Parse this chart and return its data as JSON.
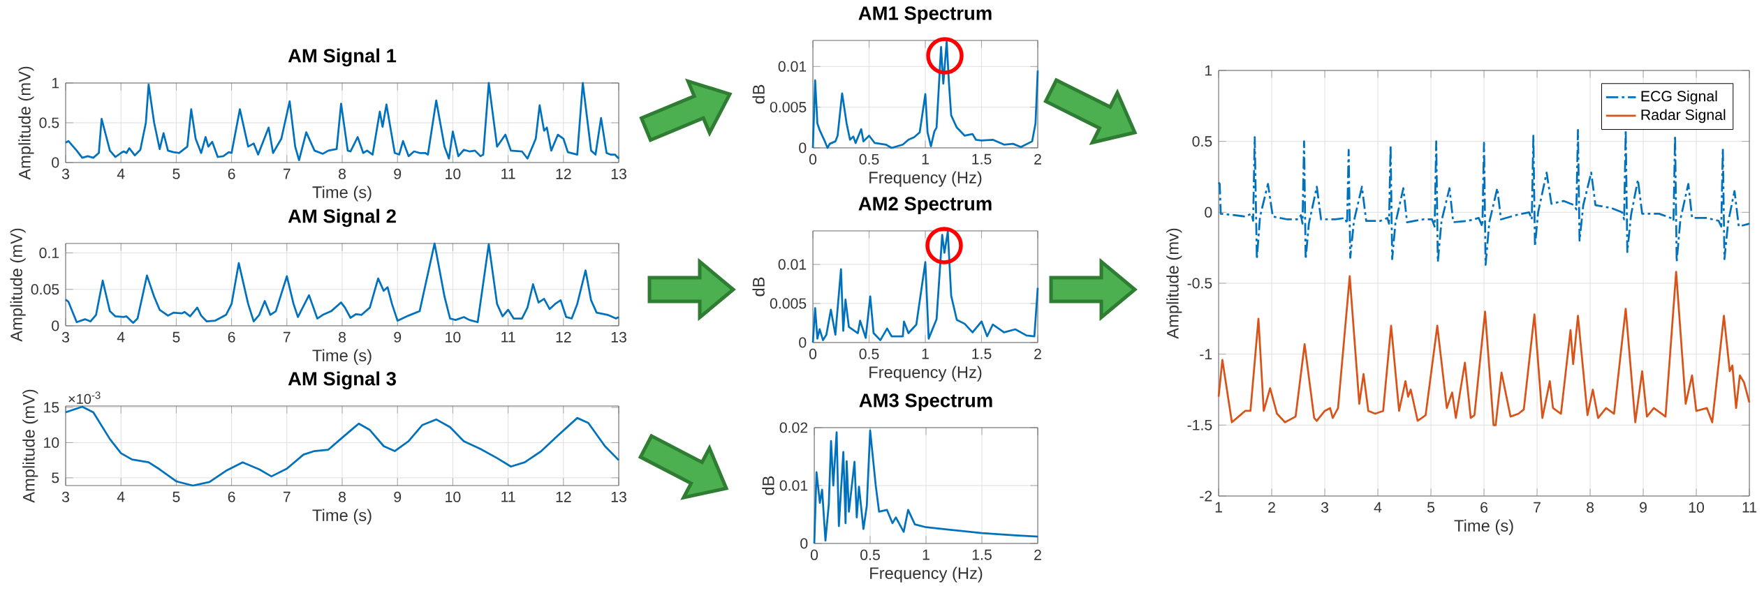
{
  "chart_data": [
    {
      "type": "line",
      "title": "AM Signal 1",
      "xlabel": "Time (s)",
      "ylabel": "Amplitude (mV)",
      "color": "#0072bd",
      "grid": true,
      "xlim": [
        3,
        13
      ],
      "ylim": [
        0,
        1
      ],
      "xticks": [
        3,
        4,
        5,
        6,
        7,
        8,
        9,
        10,
        11,
        12,
        13
      ],
      "yticks": [
        0,
        0.5,
        1
      ],
      "x": [
        3.0,
        3.05,
        3.2,
        3.3,
        3.4,
        3.5,
        3.6,
        3.65,
        3.8,
        3.9,
        4.0,
        4.05,
        4.1,
        4.15,
        4.25,
        4.35,
        4.45,
        4.5,
        4.6,
        4.7,
        4.77,
        4.85,
        4.95,
        5.05,
        5.2,
        5.27,
        5.35,
        5.45,
        5.53,
        5.58,
        5.65,
        5.75,
        5.85,
        5.95,
        6.0,
        6.15,
        6.3,
        6.4,
        6.48,
        6.67,
        6.75,
        6.9,
        7.05,
        7.15,
        7.22,
        7.35,
        7.5,
        7.65,
        7.75,
        7.9,
        7.98,
        8.1,
        8.15,
        8.28,
        8.38,
        8.45,
        8.55,
        8.68,
        8.73,
        8.8,
        8.95,
        9.03,
        9.1,
        9.2,
        9.3,
        9.4,
        9.5,
        9.55,
        9.7,
        9.85,
        9.93,
        10.0,
        10.1,
        10.2,
        10.3,
        10.4,
        10.5,
        10.55,
        10.65,
        10.8,
        10.95,
        11.05,
        11.25,
        11.35,
        11.5,
        11.57,
        11.65,
        11.7,
        11.78,
        11.9,
        12.0,
        12.08,
        12.25,
        12.35,
        12.5,
        12.58,
        12.68,
        12.78,
        12.85,
        12.93,
        13.0
      ],
      "values": [
        0.25,
        0.27,
        0.15,
        0.06,
        0.08,
        0.06,
        0.12,
        0.55,
        0.15,
        0.07,
        0.12,
        0.14,
        0.12,
        0.18,
        0.09,
        0.16,
        0.5,
        0.98,
        0.5,
        0.17,
        0.37,
        0.15,
        0.13,
        0.12,
        0.2,
        0.67,
        0.3,
        0.12,
        0.32,
        0.2,
        0.26,
        0.07,
        0.08,
        0.13,
        0.12,
        0.67,
        0.2,
        0.24,
        0.1,
        0.44,
        0.12,
        0.3,
        0.77,
        0.2,
        0.03,
        0.38,
        0.15,
        0.11,
        0.15,
        0.17,
        0.74,
        0.15,
        0.14,
        0.32,
        0.12,
        0.15,
        0.1,
        0.64,
        0.45,
        0.73,
        0.12,
        0.1,
        0.27,
        0.08,
        0.14,
        0.12,
        0.12,
        0.1,
        0.78,
        0.2,
        0.05,
        0.39,
        0.08,
        0.16,
        0.14,
        0.15,
        0.08,
        0.1,
        1.0,
        0.2,
        0.35,
        0.15,
        0.14,
        0.05,
        0.3,
        0.72,
        0.4,
        0.44,
        0.15,
        0.35,
        0.3,
        0.13,
        0.1,
        1.0,
        0.15,
        0.1,
        0.56,
        0.12,
        0.1,
        0.1,
        0.05
      ]
    },
    {
      "type": "line",
      "title": "AM Signal 2",
      "xlabel": "Time (s)",
      "ylabel": "Amplitude (mV)",
      "color": "#0072bd",
      "grid": true,
      "xlim": [
        3,
        13
      ],
      "ylim": [
        0,
        0.113
      ],
      "xticks": [
        3,
        4,
        5,
        6,
        7,
        8,
        9,
        10,
        11,
        12,
        13
      ],
      "yticks": [
        0,
        0.05,
        0.1
      ],
      "x": [
        3.0,
        3.05,
        3.2,
        3.35,
        3.45,
        3.55,
        3.67,
        3.8,
        3.9,
        4.05,
        4.1,
        4.22,
        4.3,
        4.47,
        4.6,
        4.7,
        4.85,
        4.95,
        5.1,
        5.15,
        5.25,
        5.38,
        5.45,
        5.55,
        5.7,
        5.9,
        6.0,
        6.13,
        6.3,
        6.4,
        6.5,
        6.6,
        6.7,
        6.8,
        7.0,
        7.12,
        7.2,
        7.4,
        7.55,
        7.65,
        7.8,
        7.98,
        8.05,
        8.15,
        8.25,
        8.35,
        8.5,
        8.65,
        8.75,
        8.82,
        8.9,
        9.0,
        9.2,
        9.4,
        9.67,
        9.85,
        9.95,
        10.05,
        10.2,
        10.3,
        10.45,
        10.65,
        10.8,
        10.9,
        11.0,
        11.1,
        11.25,
        11.35,
        11.45,
        11.55,
        11.65,
        11.75,
        11.85,
        11.95,
        12.05,
        12.15,
        12.25,
        12.4,
        12.5,
        12.6,
        12.8,
        12.95,
        13.0
      ],
      "values": [
        0.036,
        0.033,
        0.005,
        0.009,
        0.006,
        0.015,
        0.062,
        0.02,
        0.013,
        0.012,
        0.013,
        0.004,
        0.01,
        0.069,
        0.04,
        0.022,
        0.014,
        0.018,
        0.017,
        0.019,
        0.013,
        0.025,
        0.014,
        0.006,
        0.007,
        0.015,
        0.03,
        0.086,
        0.03,
        0.006,
        0.015,
        0.034,
        0.015,
        0.02,
        0.068,
        0.03,
        0.012,
        0.042,
        0.01,
        0.015,
        0.02,
        0.032,
        0.025,
        0.011,
        0.016,
        0.015,
        0.025,
        0.065,
        0.048,
        0.053,
        0.03,
        0.007,
        0.014,
        0.02,
        0.113,
        0.04,
        0.01,
        0.008,
        0.012,
        0.008,
        0.005,
        0.112,
        0.03,
        0.013,
        0.022,
        0.01,
        0.01,
        0.025,
        0.057,
        0.032,
        0.037,
        0.023,
        0.03,
        0.035,
        0.012,
        0.01,
        0.03,
        0.076,
        0.035,
        0.018,
        0.015,
        0.01,
        0.012
      ]
    },
    {
      "type": "line",
      "title": "AM Signal 3",
      "xlabel": "Time (s)",
      "ylabel": "Amplitude (mV)",
      "annotations": [
        "×10$^{-3}$"
      ],
      "color": "#0072bd",
      "grid": true,
      "xlim": [
        3,
        13
      ],
      "ylim": [
        3.9,
        15.2
      ],
      "xticks": [
        3,
        4,
        5,
        6,
        7,
        8,
        9,
        10,
        11,
        12,
        13
      ],
      "yticks": [
        5,
        10,
        15
      ],
      "x": [
        3.0,
        3.3,
        3.5,
        3.8,
        4.0,
        4.2,
        4.5,
        4.7,
        5.0,
        5.3,
        5.6,
        5.9,
        6.2,
        6.5,
        6.72,
        7.0,
        7.3,
        7.5,
        7.75,
        8.0,
        8.3,
        8.5,
        8.75,
        8.95,
        9.2,
        9.45,
        9.7,
        9.95,
        10.2,
        10.5,
        10.8,
        11.05,
        11.3,
        11.6,
        11.9,
        12.25,
        12.45,
        12.75,
        13.0
      ],
      "values": [
        14.3,
        15.1,
        14.3,
        10.5,
        8.5,
        7.6,
        7.2,
        6.2,
        4.5,
        3.9,
        4.4,
        6.0,
        7.2,
        6.2,
        5.2,
        6.3,
        8.3,
        8.8,
        9.0,
        10.7,
        12.7,
        11.8,
        9.5,
        8.8,
        10.2,
        12.5,
        13.3,
        12.2,
        10.2,
        9.1,
        7.8,
        6.6,
        7.2,
        8.8,
        11.0,
        13.5,
        12.8,
        9.5,
        7.5
      ]
    },
    {
      "type": "line",
      "title": "AM1 Spectrum",
      "xlabel": "Frequency (Hz)",
      "ylabel": "dB",
      "color": "#0072bd",
      "grid": true,
      "xlim": [
        0,
        2
      ],
      "ylim": [
        0,
        0.0132
      ],
      "xticks": [
        0,
        0.5,
        1,
        1.5,
        2
      ],
      "yticks": [
        0,
        0.005,
        0.01
      ],
      "x": [
        0,
        0.02,
        0.04,
        0.06,
        0.1,
        0.13,
        0.15,
        0.2,
        0.22,
        0.26,
        0.3,
        0.33,
        0.36,
        0.38,
        0.43,
        0.45,
        0.5,
        0.55,
        0.65,
        0.7,
        0.8,
        0.85,
        0.9,
        0.95,
        1.0,
        1.02,
        1.05,
        1.08,
        1.1,
        1.14,
        1.16,
        1.19,
        1.21,
        1.23,
        1.28,
        1.35,
        1.42,
        1.45,
        1.5,
        1.6,
        1.7,
        1.78,
        1.85,
        1.95,
        1.98,
        2.0
      ],
      "values": [
        0,
        0.0083,
        0.003,
        0.0022,
        0.001,
        0,
        0.0005,
        0.0008,
        0.0015,
        0.0067,
        0.003,
        0.001,
        0.0014,
        0.0006,
        0.0023,
        0.0008,
        0.0015,
        0.0006,
        0.0004,
        0,
        0.0004,
        0.001,
        0.0013,
        0.0019,
        0.0066,
        0.0019,
        0.0002,
        0.002,
        0.0025,
        0.0124,
        0.0079,
        0.0131,
        0.008,
        0.004,
        0.0025,
        0.0015,
        0.0017,
        0.001,
        0.0009,
        0.001,
        0.0004,
        0.0005,
        0.0001,
        0.0008,
        0.003,
        0.0095
      ]
    },
    {
      "type": "line",
      "title": "AM2 Spectrum",
      "xlabel": "Frequency (Hz)",
      "ylabel": "dB",
      "color": "#0072bd",
      "grid": true,
      "xlim": [
        0,
        2
      ],
      "ylim": [
        0,
        0.0143
      ],
      "xticks": [
        0,
        0.5,
        1,
        1.5,
        2
      ],
      "yticks": [
        0,
        0.005,
        0.01
      ],
      "x": [
        0,
        0.02,
        0.04,
        0.06,
        0.09,
        0.12,
        0.16,
        0.2,
        0.25,
        0.27,
        0.29,
        0.32,
        0.4,
        0.42,
        0.47,
        0.51,
        0.54,
        0.6,
        0.66,
        0.7,
        0.8,
        0.81,
        0.85,
        0.92,
        1.0,
        1.03,
        1.1,
        1.15,
        1.17,
        1.2,
        1.23,
        1.28,
        1.35,
        1.42,
        1.5,
        1.55,
        1.6,
        1.7,
        1.8,
        1.9,
        1.97,
        2.0
      ],
      "values": [
        0,
        0.0044,
        0.0005,
        0.0017,
        0.0003,
        0.001,
        0.0042,
        0.001,
        0.0094,
        0.0015,
        0.0055,
        0.002,
        0.0012,
        0.0028,
        0.0006,
        0.0059,
        0.0012,
        0.0003,
        0.0018,
        0.0008,
        0.0008,
        0.0027,
        0.0012,
        0.0023,
        0.0103,
        0.0005,
        0.003,
        0.0138,
        0.0115,
        0.0142,
        0.006,
        0.0029,
        0.0024,
        0.0013,
        0.0027,
        0.0008,
        0.0023,
        0.0013,
        0.0017,
        0.0009,
        0.0008,
        0.007
      ]
    },
    {
      "type": "line",
      "title": "AM3 Spectrum",
      "xlabel": "Frequency (Hz)",
      "ylabel": "dB",
      "color": "#0072bd",
      "grid": true,
      "xlim": [
        0,
        2
      ],
      "ylim": [
        0,
        0.02
      ],
      "xticks": [
        0,
        0.5,
        1,
        1.5,
        2
      ],
      "yticks": [
        0,
        0.01,
        0.02
      ],
      "x": [
        0,
        0.02,
        0.05,
        0.07,
        0.1,
        0.13,
        0.15,
        0.17,
        0.2,
        0.22,
        0.26,
        0.28,
        0.29,
        0.31,
        0.36,
        0.38,
        0.4,
        0.44,
        0.47,
        0.5,
        0.55,
        0.58,
        0.65,
        0.7,
        0.73,
        0.8,
        0.84,
        0.9,
        1.0,
        1.2,
        1.5,
        1.8,
        2.0
      ],
      "values": [
        0,
        0.0123,
        0.007,
        0.0093,
        0.0005,
        0.0068,
        0.0177,
        0.01,
        0.0192,
        0.003,
        0.0158,
        0.0035,
        0.0142,
        0.0055,
        0.0141,
        0.0045,
        0.0098,
        0.0025,
        0.0065,
        0.0195,
        0.01,
        0.0055,
        0.0058,
        0.0035,
        0.0045,
        0.002,
        0.0058,
        0.0033,
        0.0028,
        0.0024,
        0.0018,
        0.0014,
        0.0012
      ]
    },
    {
      "type": "line",
      "xlabel": "Time (s)",
      "ylabel": "Amplitude (mv)",
      "grid": true,
      "legend": "top right",
      "xlim": [
        1,
        11
      ],
      "ylim": [
        -2,
        1
      ],
      "xticks": [
        1,
        2,
        3,
        4,
        5,
        6,
        7,
        8,
        9,
        10,
        11
      ],
      "yticks": [
        -2,
        -1.5,
        -1,
        -0.5,
        0,
        0.5,
        1
      ],
      "series": [
        {
          "name": "ECG Signal",
          "color": "#0072bd",
          "line_style": "dashed",
          "x": [
            1.0,
            1.02,
            1.04,
            1.3,
            1.5,
            1.62,
            1.65,
            1.68,
            1.72,
            1.78,
            1.93,
            2.02,
            2.3,
            2.5,
            2.55,
            2.58,
            2.61,
            2.64,
            2.7,
            2.85,
            2.93,
            3.2,
            3.38,
            3.42,
            3.45,
            3.48,
            3.55,
            3.7,
            3.78,
            4.05,
            4.18,
            4.21,
            4.24,
            4.27,
            4.33,
            4.48,
            4.55,
            4.85,
            5.02,
            5.07,
            5.1,
            5.13,
            5.2,
            5.35,
            5.42,
            5.7,
            5.9,
            5.97,
            6.0,
            6.03,
            6.1,
            6.25,
            6.32,
            6.6,
            6.85,
            6.9,
            6.93,
            6.96,
            7.02,
            7.18,
            7.27,
            7.5,
            7.7,
            7.74,
            7.77,
            7.8,
            7.87,
            8.02,
            8.1,
            8.4,
            8.6,
            8.64,
            8.67,
            8.7,
            8.77,
            8.9,
            8.98,
            9.3,
            9.52,
            9.57,
            9.6,
            9.63,
            9.7,
            9.85,
            9.92,
            10.2,
            10.42,
            10.47,
            10.5,
            10.53,
            10.6,
            10.72,
            10.8,
            11.0
          ],
          "values": [
            0.21,
            0.2,
            -0.01,
            -0.02,
            -0.03,
            -0.01,
            -0.06,
            0.53,
            -0.33,
            -0.03,
            0.2,
            -0.03,
            -0.05,
            -0.05,
            -0.02,
            -0.08,
            0.5,
            -0.33,
            -0.08,
            0.18,
            -0.05,
            -0.05,
            -0.04,
            -0.08,
            0.44,
            -0.32,
            -0.06,
            0.18,
            -0.06,
            -0.06,
            -0.04,
            -0.08,
            0.47,
            -0.33,
            -0.08,
            0.17,
            -0.07,
            -0.05,
            -0.05,
            -0.1,
            0.5,
            -0.35,
            -0.06,
            0.17,
            -0.07,
            -0.06,
            -0.04,
            -0.1,
            0.49,
            -0.37,
            -0.07,
            0.17,
            -0.05,
            -0.02,
            0.0,
            -0.05,
            0.54,
            -0.24,
            0.0,
            0.28,
            0.06,
            0.08,
            0.05,
            0.02,
            0.58,
            -0.2,
            0.05,
            0.28,
            0.05,
            0.03,
            0.0,
            -0.05,
            0.58,
            -0.28,
            -0.02,
            0.23,
            -0.01,
            -0.01,
            -0.04,
            -0.06,
            0.54,
            -0.35,
            -0.05,
            0.2,
            -0.04,
            -0.04,
            -0.06,
            -0.1,
            0.45,
            -0.33,
            -0.07,
            0.15,
            -0.1,
            -0.08
          ]
        },
        {
          "name": "Radar Signal",
          "color": "#d95319",
          "line_style": "solid",
          "x": [
            1.0,
            1.07,
            1.25,
            1.5,
            1.6,
            1.75,
            1.85,
            1.97,
            2.1,
            2.25,
            2.45,
            2.62,
            2.8,
            2.85,
            3.0,
            3.1,
            3.15,
            3.25,
            3.47,
            3.65,
            3.73,
            3.82,
            3.95,
            4.1,
            4.25,
            4.4,
            4.52,
            4.57,
            4.62,
            4.75,
            4.9,
            5.12,
            5.3,
            5.4,
            5.47,
            5.64,
            5.75,
            5.82,
            6.02,
            6.18,
            6.22,
            6.33,
            6.5,
            6.65,
            6.75,
            6.95,
            7.1,
            7.24,
            7.3,
            7.45,
            7.63,
            7.68,
            7.77,
            7.95,
            8.05,
            8.15,
            8.3,
            8.45,
            8.67,
            8.85,
            8.98,
            9.07,
            9.2,
            9.42,
            9.62,
            9.8,
            9.92,
            10.0,
            10.2,
            10.3,
            10.52,
            10.63,
            10.68,
            10.75,
            10.82,
            10.9,
            11.0
          ],
          "values": [
            -1.3,
            -1.04,
            -1.48,
            -1.4,
            -1.4,
            -0.75,
            -1.4,
            -1.24,
            -1.42,
            -1.48,
            -1.44,
            -0.93,
            -1.45,
            -1.47,
            -1.4,
            -1.38,
            -1.45,
            -1.38,
            -0.45,
            -1.35,
            -1.14,
            -1.4,
            -1.42,
            -1.4,
            -0.8,
            -1.4,
            -1.19,
            -1.3,
            -1.25,
            -1.47,
            -1.43,
            -0.8,
            -1.38,
            -1.27,
            -1.45,
            -1.06,
            -1.45,
            -1.43,
            -0.7,
            -1.5,
            -1.5,
            -1.13,
            -1.44,
            -1.42,
            -1.39,
            -0.72,
            -1.45,
            -1.19,
            -1.38,
            -1.42,
            -0.83,
            -1.07,
            -0.73,
            -1.43,
            -1.25,
            -1.45,
            -1.38,
            -1.42,
            -0.68,
            -1.48,
            -1.12,
            -1.44,
            -1.38,
            -1.44,
            -0.42,
            -1.35,
            -1.15,
            -1.4,
            -1.38,
            -1.48,
            -0.73,
            -1.12,
            -1.08,
            -1.38,
            -1.15,
            -1.2,
            -1.34
          ]
        }
      ]
    }
  ]
}
